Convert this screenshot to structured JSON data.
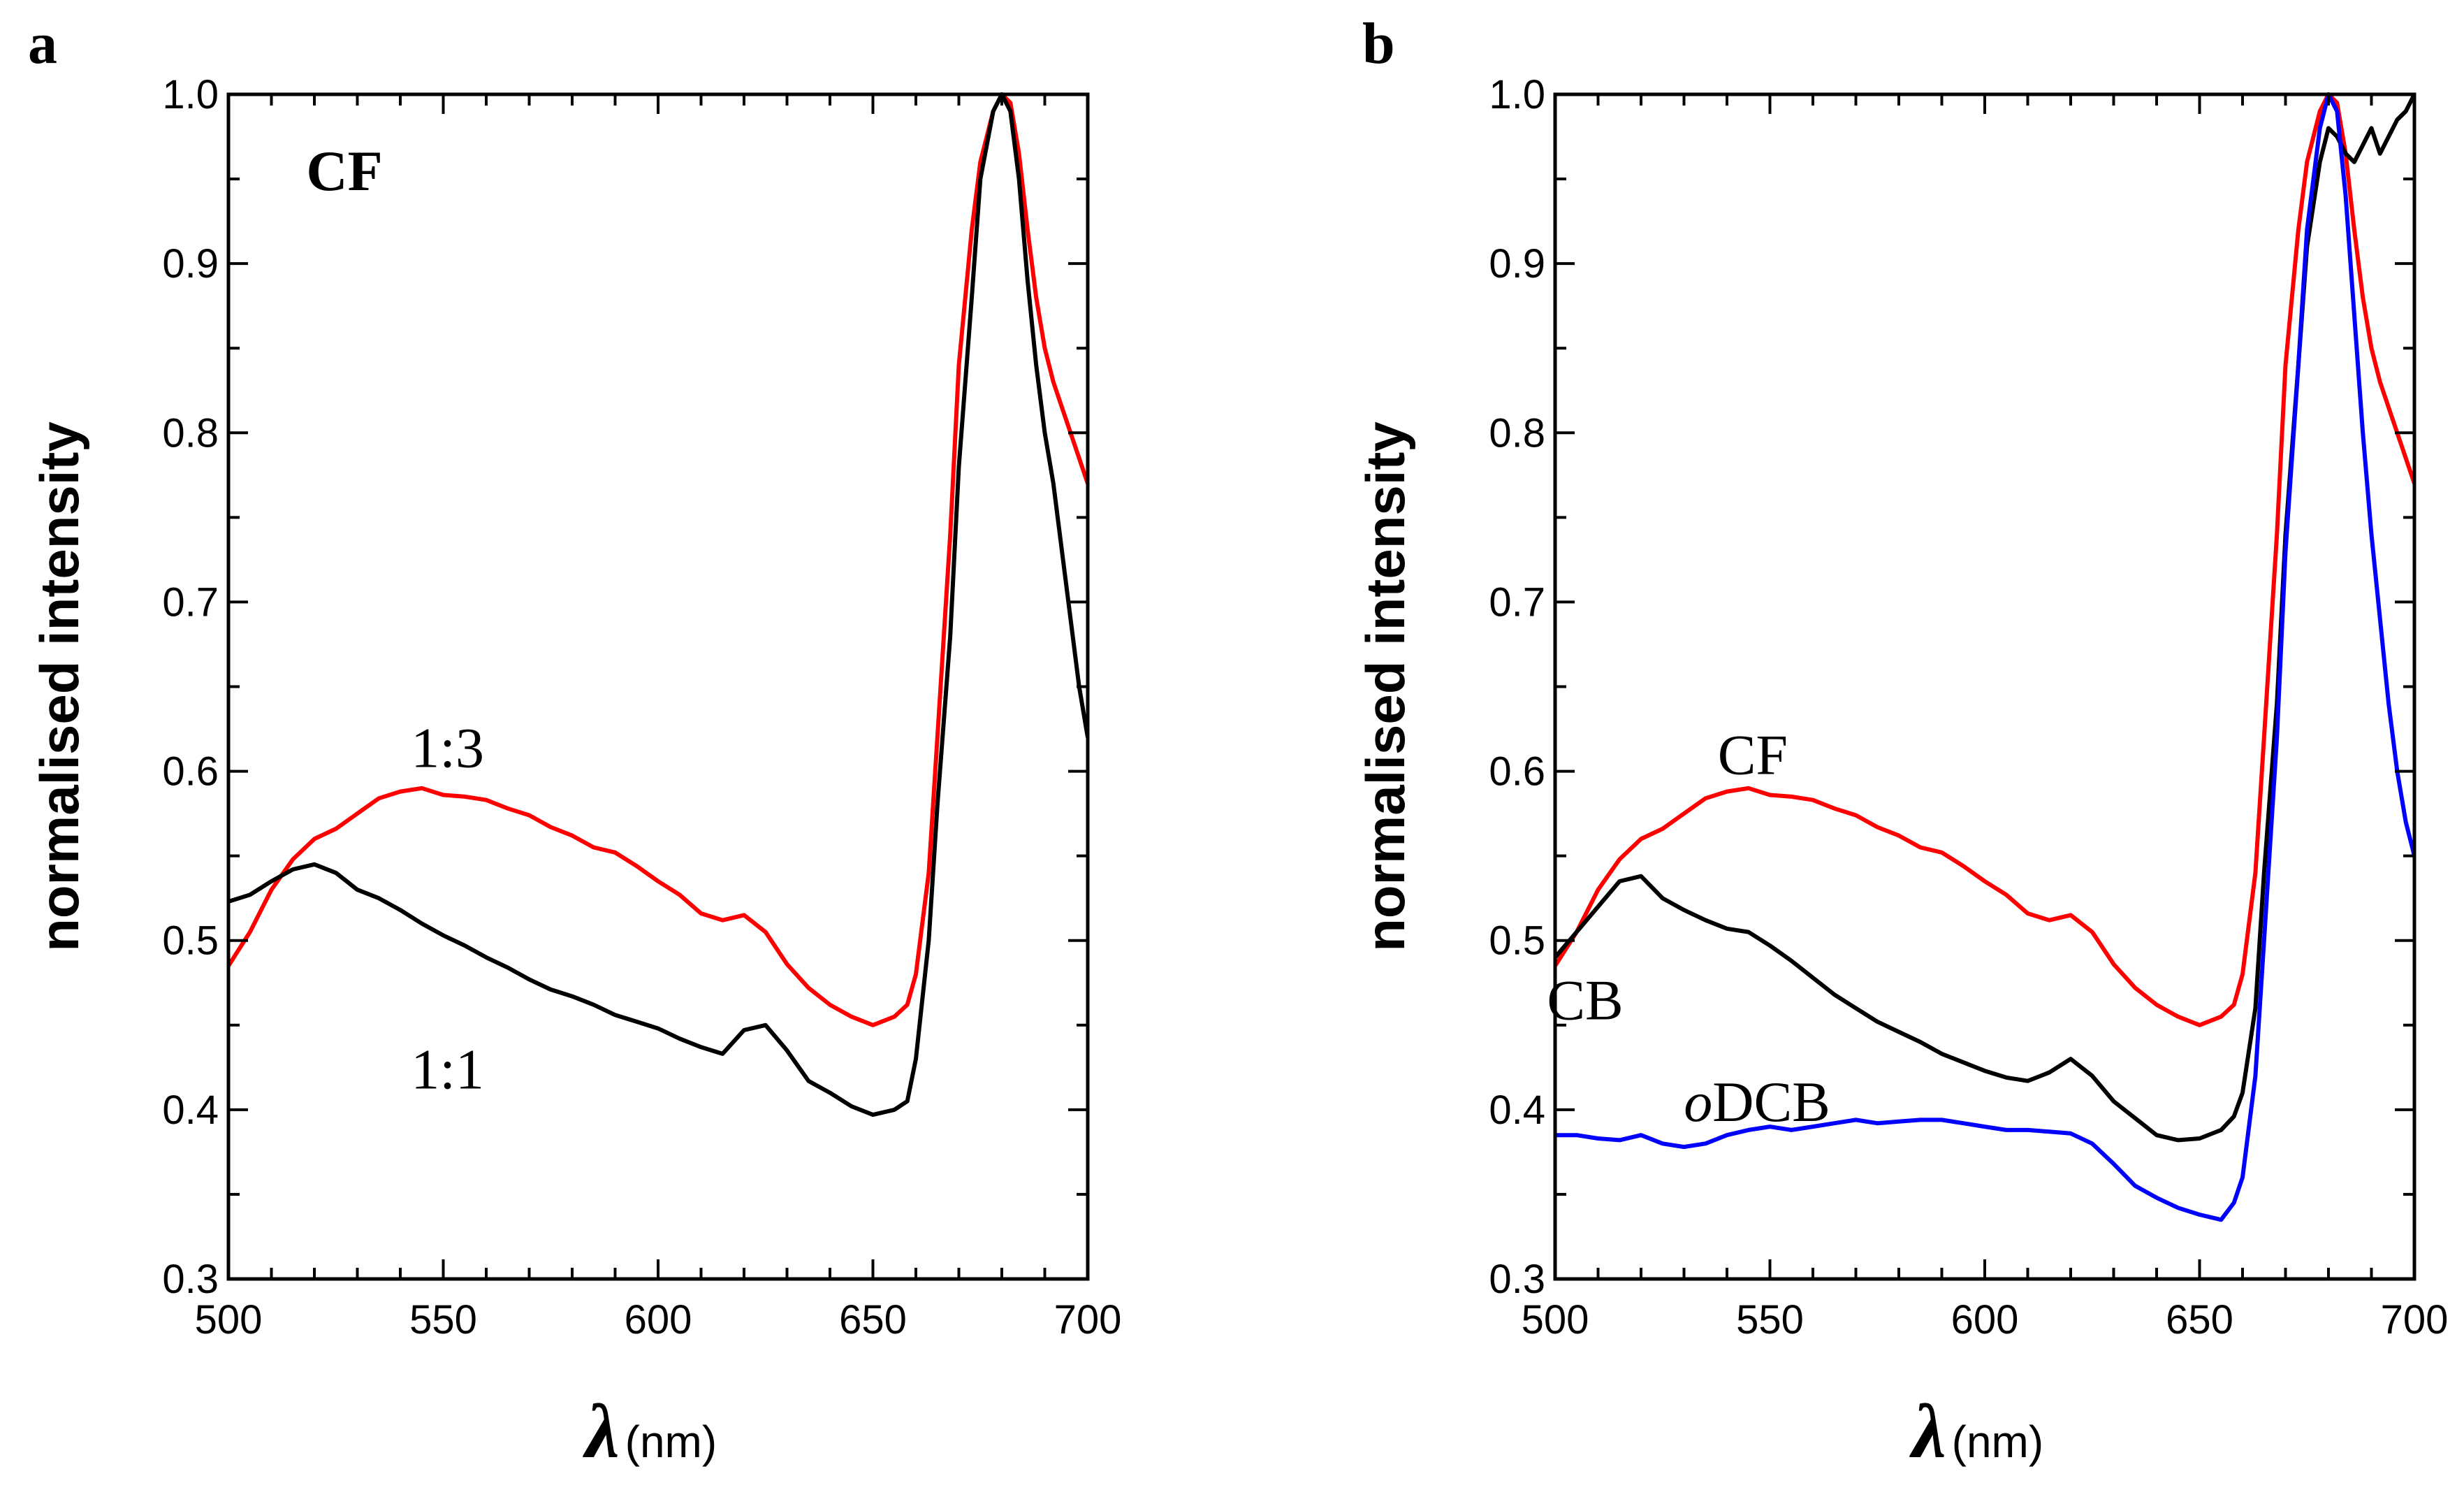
{
  "chart_data": [
    {
      "type": "line",
      "panel_label": "a",
      "ylabel": "normalised intensity",
      "xlabel_symbol": "λ",
      "xlabel_unit": "(nm)",
      "xlim": [
        500,
        700
      ],
      "ylim": [
        0.3,
        1.0
      ],
      "x_ticks": [
        "500",
        "550",
        "600",
        "650",
        "700"
      ],
      "y_ticks": [
        "0.3",
        "0.4",
        "0.5",
        "0.6",
        "0.7",
        "0.8",
        "0.9",
        "1.0"
      ],
      "grid": false,
      "annotations": [
        {
          "text": "CF",
          "x": 527,
          "y": 0.955,
          "style": "bold"
        },
        {
          "text": "1:3",
          "x": 551,
          "y": 0.614,
          "style": "normal"
        },
        {
          "text": "1:1",
          "x": 551,
          "y": 0.424,
          "style": "normal"
        }
      ],
      "series": [
        {
          "color": "#ff0000",
          "x": [
            500,
            505,
            510,
            515,
            520,
            525,
            530,
            535,
            540,
            545,
            550,
            555,
            560,
            565,
            570,
            575,
            580,
            585,
            590,
            595,
            600,
            605,
            610,
            615,
            620,
            625,
            630,
            635,
            640,
            645,
            650,
            655,
            658,
            660,
            663,
            665,
            668,
            670,
            673,
            675,
            678,
            680,
            682,
            684,
            686,
            688,
            690,
            692,
            694,
            696,
            698,
            700
          ],
          "y": [
            0.485,
            0.505,
            0.53,
            0.548,
            0.56,
            0.566,
            0.575,
            0.584,
            0.588,
            0.59,
            0.586,
            0.585,
            0.583,
            0.578,
            0.574,
            0.567,
            0.562,
            0.555,
            0.552,
            0.544,
            0.535,
            0.527,
            0.516,
            0.512,
            0.515,
            0.505,
            0.486,
            0.472,
            0.462,
            0.455,
            0.45,
            0.455,
            0.462,
            0.48,
            0.54,
            0.62,
            0.74,
            0.84,
            0.92,
            0.96,
            0.99,
            1.0,
            0.995,
            0.965,
            0.92,
            0.88,
            0.85,
            0.83,
            0.815,
            0.8,
            0.785,
            0.77
          ]
        },
        {
          "color": "#000000",
          "x": [
            500,
            505,
            510,
            515,
            520,
            525,
            530,
            535,
            540,
            545,
            550,
            555,
            560,
            565,
            570,
            575,
            580,
            585,
            590,
            595,
            600,
            605,
            610,
            615,
            620,
            625,
            630,
            635,
            640,
            645,
            650,
            655,
            658,
            660,
            663,
            665,
            668,
            670,
            673,
            675,
            678,
            680,
            682,
            684,
            686,
            688,
            690,
            692,
            694,
            696,
            698,
            700
          ],
          "y": [
            0.523,
            0.527,
            0.535,
            0.542,
            0.545,
            0.54,
            0.53,
            0.525,
            0.518,
            0.51,
            0.503,
            0.497,
            0.49,
            0.484,
            0.477,
            0.471,
            0.467,
            0.462,
            0.456,
            0.452,
            0.448,
            0.442,
            0.437,
            0.433,
            0.447,
            0.45,
            0.435,
            0.417,
            0.41,
            0.402,
            0.397,
            0.4,
            0.405,
            0.43,
            0.5,
            0.58,
            0.68,
            0.78,
            0.88,
            0.95,
            0.99,
            1.0,
            0.99,
            0.95,
            0.89,
            0.84,
            0.8,
            0.77,
            0.73,
            0.69,
            0.65,
            0.62
          ]
        }
      ]
    },
    {
      "type": "line",
      "panel_label": "b",
      "ylabel": "normalised intensity",
      "xlabel_symbol": "λ",
      "xlabel_unit": "(nm)",
      "xlim": [
        500,
        700
      ],
      "ylim": [
        0.3,
        1.0
      ],
      "x_ticks": [
        "500",
        "550",
        "600",
        "650",
        "700"
      ],
      "y_ticks": [
        "0.3",
        "0.4",
        "0.5",
        "0.6",
        "0.7",
        "0.8",
        "0.9",
        "1.0"
      ],
      "grid": false,
      "annotations": [
        {
          "text": "CF",
          "x": 546,
          "y": 0.61,
          "style": "normal"
        },
        {
          "text": "CB",
          "x": 507,
          "y": 0.465,
          "style": "normal"
        },
        {
          "text": "oDCB",
          "x": 547,
          "y": 0.405,
          "style": "normal",
          "italic_prefix": "o",
          "rest": "DCB"
        }
      ],
      "series": [
        {
          "color": "#ff0000",
          "x": [
            500,
            505,
            510,
            515,
            520,
            525,
            530,
            535,
            540,
            545,
            550,
            555,
            560,
            565,
            570,
            575,
            580,
            585,
            590,
            595,
            600,
            605,
            610,
            615,
            620,
            625,
            630,
            635,
            640,
            645,
            650,
            655,
            658,
            660,
            663,
            665,
            668,
            670,
            673,
            675,
            678,
            680,
            682,
            684,
            686,
            688,
            690,
            692,
            694,
            696,
            698,
            700
          ],
          "y": [
            0.485,
            0.505,
            0.53,
            0.548,
            0.56,
            0.566,
            0.575,
            0.584,
            0.588,
            0.59,
            0.586,
            0.585,
            0.583,
            0.578,
            0.574,
            0.567,
            0.562,
            0.555,
            0.552,
            0.544,
            0.535,
            0.527,
            0.516,
            0.512,
            0.515,
            0.505,
            0.486,
            0.472,
            0.462,
            0.455,
            0.45,
            0.455,
            0.462,
            0.48,
            0.54,
            0.62,
            0.74,
            0.84,
            0.92,
            0.96,
            0.99,
            1.0,
            0.995,
            0.965,
            0.92,
            0.88,
            0.85,
            0.83,
            0.815,
            0.8,
            0.785,
            0.77
          ]
        },
        {
          "color": "#000000",
          "x": [
            500,
            505,
            510,
            515,
            520,
            525,
            530,
            535,
            540,
            545,
            550,
            555,
            560,
            565,
            570,
            575,
            580,
            585,
            590,
            595,
            600,
            605,
            610,
            615,
            620,
            625,
            630,
            635,
            640,
            645,
            650,
            655,
            658,
            660,
            663,
            665,
            668,
            670,
            673,
            675,
            678,
            680,
            682,
            684,
            686,
            688,
            690,
            692,
            694,
            696,
            698,
            700
          ],
          "y": [
            0.49,
            0.505,
            0.52,
            0.535,
            0.538,
            0.525,
            0.518,
            0.512,
            0.507,
            0.505,
            0.497,
            0.488,
            0.478,
            0.468,
            0.46,
            0.452,
            0.446,
            0.44,
            0.433,
            0.428,
            0.423,
            0.419,
            0.417,
            0.422,
            0.43,
            0.42,
            0.405,
            0.395,
            0.385,
            0.382,
            0.383,
            0.388,
            0.396,
            0.41,
            0.46,
            0.54,
            0.64,
            0.74,
            0.84,
            0.91,
            0.96,
            0.98,
            0.975,
            0.965,
            0.96,
            0.97,
            0.98,
            0.965,
            0.975,
            0.985,
            0.99,
            1.0
          ]
        },
        {
          "color": "#0000ff",
          "x": [
            500,
            505,
            510,
            515,
            520,
            525,
            530,
            535,
            540,
            545,
            550,
            555,
            560,
            565,
            570,
            575,
            580,
            585,
            590,
            595,
            600,
            605,
            610,
            615,
            620,
            625,
            630,
            635,
            640,
            645,
            650,
            655,
            658,
            660,
            663,
            665,
            668,
            670,
            673,
            675,
            678,
            680,
            682,
            684,
            686,
            688,
            690,
            692,
            694,
            696,
            698,
            700
          ],
          "y": [
            0.385,
            0.385,
            0.383,
            0.382,
            0.385,
            0.38,
            0.378,
            0.38,
            0.385,
            0.388,
            0.39,
            0.388,
            0.39,
            0.392,
            0.394,
            0.392,
            0.393,
            0.394,
            0.394,
            0.392,
            0.39,
            0.388,
            0.388,
            0.387,
            0.386,
            0.38,
            0.368,
            0.355,
            0.348,
            0.342,
            0.338,
            0.335,
            0.345,
            0.36,
            0.42,
            0.5,
            0.62,
            0.73,
            0.84,
            0.92,
            0.98,
            1.0,
            0.99,
            0.94,
            0.87,
            0.8,
            0.74,
            0.69,
            0.64,
            0.6,
            0.57,
            0.55
          ]
        }
      ]
    }
  ]
}
